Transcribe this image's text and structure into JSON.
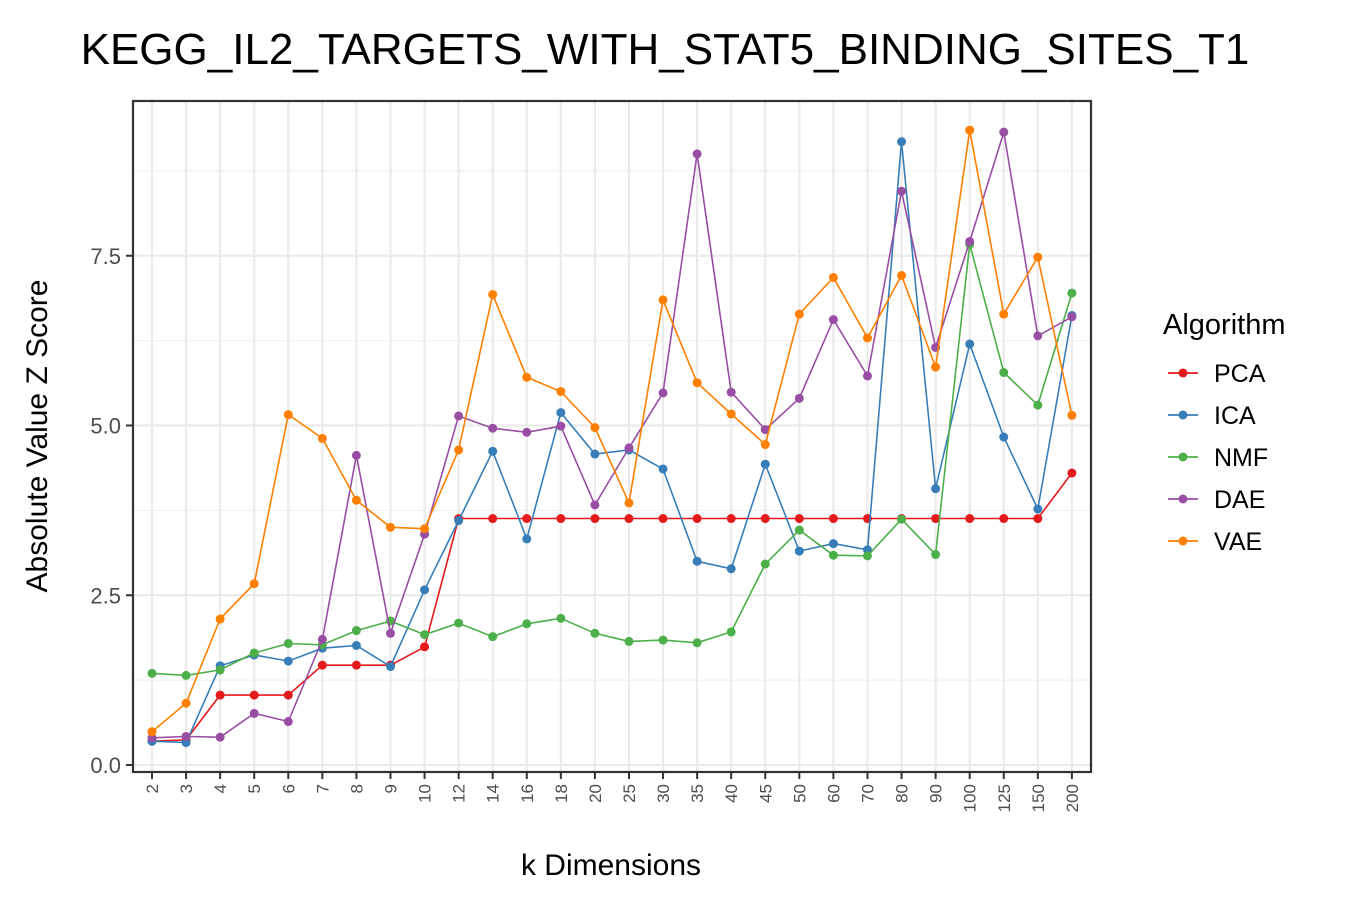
{
  "chart_data": {
    "type": "line",
    "title": "KEGG_IL2_TARGETS_WITH_STAT5_BINDING_SITES_T1",
    "xlabel": "k Dimensions",
    "ylabel": "Absolute Value Z Score",
    "categories": [
      "2",
      "3",
      "4",
      "5",
      "6",
      "7",
      "8",
      "9",
      "10",
      "12",
      "14",
      "16",
      "18",
      "20",
      "25",
      "30",
      "35",
      "40",
      "45",
      "50",
      "60",
      "70",
      "80",
      "90",
      "100",
      "125",
      "150",
      "200"
    ],
    "yticks": [
      "0.0",
      "2.5",
      "5.0",
      "7.5"
    ],
    "ylim": [
      -0.1,
      9.85
    ],
    "grid": true,
    "legend": {
      "title": "Algorithm",
      "position": "right"
    },
    "series": [
      {
        "name": "PCA",
        "color": "#E41A1C",
        "values": [
          0.35,
          0.37,
          1.03,
          1.03,
          1.03,
          1.47,
          1.47,
          1.47,
          1.74,
          3.63,
          3.63,
          3.63,
          3.63,
          3.63,
          3.63,
          3.63,
          3.63,
          3.63,
          3.63,
          3.63,
          3.63,
          3.63,
          3.63,
          3.63,
          3.63,
          3.63,
          3.63,
          4.3
        ]
      },
      {
        "name": "ICA",
        "color": "#377EB8",
        "values": [
          0.35,
          0.33,
          1.46,
          1.62,
          1.53,
          1.72,
          1.76,
          1.45,
          2.58,
          3.6,
          4.62,
          3.33,
          5.19,
          4.58,
          4.64,
          4.36,
          3.0,
          2.89,
          4.43,
          3.15,
          3.26,
          3.17,
          9.18,
          4.07,
          6.2,
          4.83,
          3.77,
          6.62
        ]
      },
      {
        "name": "NMF",
        "color": "#4DAF4A",
        "values": [
          1.35,
          1.32,
          1.4,
          1.65,
          1.79,
          1.77,
          1.98,
          2.12,
          1.92,
          2.09,
          1.89,
          2.08,
          2.16,
          1.94,
          1.82,
          1.84,
          1.8,
          1.96,
          2.96,
          3.46,
          3.09,
          3.08,
          3.62,
          3.1,
          7.67,
          5.78,
          5.3,
          6.95
        ]
      },
      {
        "name": "DAE",
        "color": "#984EA3",
        "values": [
          0.4,
          0.42,
          0.41,
          0.76,
          0.64,
          1.85,
          4.56,
          1.94,
          3.4,
          5.14,
          4.96,
          4.9,
          4.99,
          3.83,
          4.67,
          5.48,
          9.0,
          5.49,
          4.94,
          5.4,
          6.56,
          5.73,
          8.45,
          6.15,
          7.71,
          9.32,
          6.32,
          6.6
        ]
      },
      {
        "name": "VAE",
        "color": "#FF7F00",
        "values": [
          0.49,
          0.91,
          2.15,
          2.67,
          5.16,
          4.81,
          3.9,
          3.5,
          3.48,
          4.64,
          6.93,
          5.71,
          5.5,
          4.97,
          3.86,
          6.85,
          5.63,
          5.17,
          4.72,
          6.64,
          7.18,
          6.29,
          7.21,
          5.86,
          9.35,
          6.64,
          7.48,
          5.15
        ]
      }
    ]
  }
}
